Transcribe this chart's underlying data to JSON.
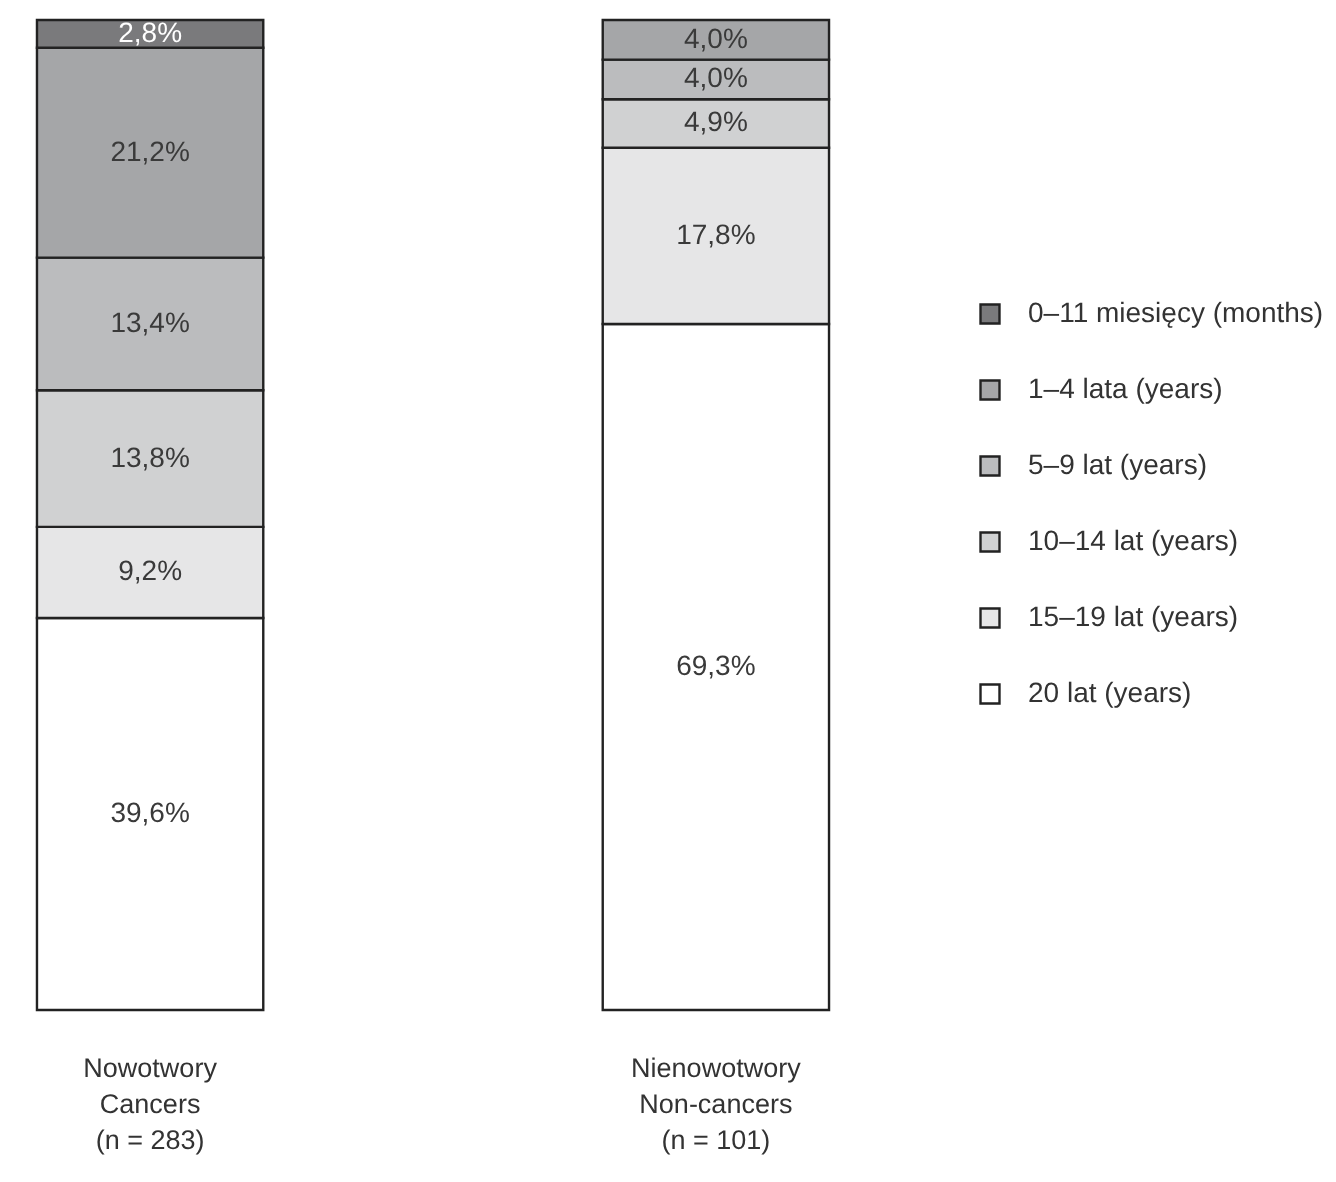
{
  "chart_data": {
    "type": "bar",
    "stacked": true,
    "legend": "right",
    "categories": [
      "Nowotwory\nCancers\n(n = 283)",
      "Nienowotwory\nNon-cancers\n(n = 101)"
    ],
    "series": [
      {
        "name": "20  lat (years)",
        "color": "#ffffff",
        "values": [
          39.6,
          69.3
        ],
        "value_labels": [
          "39,6%",
          "69,3%"
        ]
      },
      {
        "name": "15–19 lat (years)",
        "color": "#e6e6e7",
        "values": [
          9.2,
          17.8
        ],
        "value_labels": [
          "9,2%",
          "17,8%"
        ]
      },
      {
        "name": "10–14 lat (years)",
        "color": "#d0d1d2",
        "values": [
          13.8,
          4.9
        ],
        "value_labels": [
          "13,8%",
          "4,9%"
        ]
      },
      {
        "name": "5–9 lat (years)",
        "color": "#bbbcbe",
        "values": [
          13.4,
          4.0
        ],
        "value_labels": [
          "13,4%",
          "4,0%"
        ]
      },
      {
        "name": "1–4 lata (years)",
        "color": "#a5a6a8",
        "values": [
          21.2,
          4.0
        ],
        "value_labels": [
          "21,2%",
          "4,0%"
        ]
      },
      {
        "name": "0–11 miesięcy (months)",
        "color": "#7a7a7c",
        "values": [
          2.8,
          null
        ],
        "value_labels": [
          "2,8%",
          null
        ]
      }
    ]
  }
}
